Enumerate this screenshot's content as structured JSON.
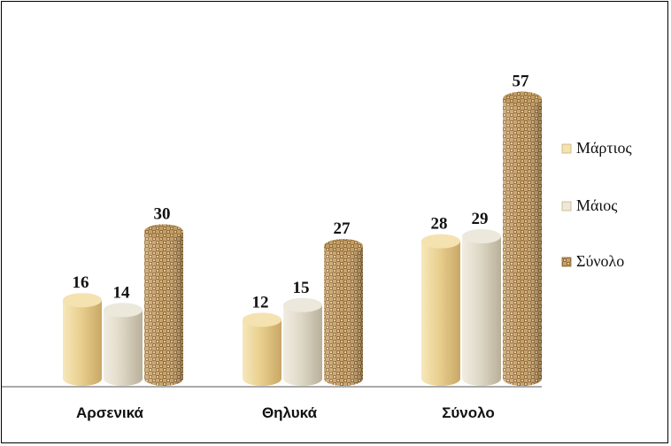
{
  "chart_data": {
    "type": "bar",
    "categories": [
      "Αρσενικά",
      "Θηλυκά",
      "Σύνολο"
    ],
    "series": [
      {
        "name": "Μάρτιος",
        "values": [
          16,
          12,
          28
        ],
        "color": "#e8cf93"
      },
      {
        "name": "Μάιος",
        "values": [
          14,
          15,
          29
        ],
        "color": "#ddd6c4"
      },
      {
        "name": "Σύνολο",
        "values": [
          30,
          27,
          57
        ],
        "color": "#b8925a"
      }
    ],
    "ylim": [
      0,
      60
    ],
    "grid": false,
    "legend": "right",
    "data_labels": true
  }
}
